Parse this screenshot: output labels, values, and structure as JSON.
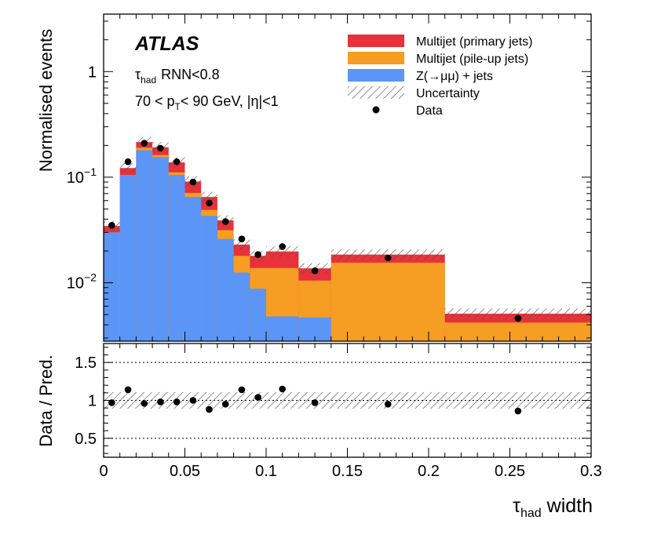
{
  "chart_data": [
    {
      "type": "bar",
      "stacked": true,
      "yscale": "log",
      "ylabel": "Normalised events",
      "xlim": [
        0,
        0.3
      ],
      "ylim": [
        0.0028,
        3.5
      ],
      "ytick_labels": [
        {
          "value": 1,
          "base": "1",
          "exp": ""
        },
        {
          "value": 0.1,
          "base": "10",
          "exp": "−1"
        },
        {
          "value": 0.01,
          "base": "10",
          "exp": "−2"
        }
      ],
      "atlas_label": "ATLAS",
      "annotations": {
        "line1_tau": "τ",
        "line1_sub": "had",
        "line1_rest": "RNN<0.8",
        "line2_pre": "70 < p",
        "line2_sub": "T",
        "line2_post": "< 90 GeV, |η|<1"
      },
      "legend": [
        {
          "label": "Multijet (primary jets)",
          "color": "#e8313a",
          "kind": "fill"
        },
        {
          "label": "Multijet (pile-up jets)",
          "color": "#f59e23",
          "kind": "fill"
        },
        {
          "label": "Z(→μμ) + jets",
          "color": "#5b95f6",
          "kind": "fill"
        },
        {
          "label": "Uncertainty",
          "color": "#555555",
          "kind": "hatch"
        },
        {
          "label": "Data",
          "color": "#000000",
          "kind": "marker"
        }
      ],
      "bins": [
        {
          "lo": 0.0,
          "hi": 0.01,
          "z": 0.03,
          "pileup": 0.0,
          "primary": 0.0045
        },
        {
          "lo": 0.01,
          "hi": 0.02,
          "z": 0.105,
          "pileup": 0.0,
          "primary": 0.017
        },
        {
          "lo": 0.02,
          "hi": 0.03,
          "z": 0.18,
          "pileup": 0.01,
          "primary": 0.025
        },
        {
          "lo": 0.03,
          "hi": 0.04,
          "z": 0.155,
          "pileup": 0.007,
          "primary": 0.03
        },
        {
          "lo": 0.04,
          "hi": 0.05,
          "z": 0.105,
          "pileup": 0.006,
          "primary": 0.027
        },
        {
          "lo": 0.05,
          "hi": 0.06,
          "z": 0.065,
          "pileup": 0.006,
          "primary": 0.02
        },
        {
          "lo": 0.06,
          "hi": 0.07,
          "z": 0.043,
          "pileup": 0.006,
          "primary": 0.016
        },
        {
          "lo": 0.07,
          "hi": 0.08,
          "z": 0.026,
          "pileup": 0.0055,
          "primary": 0.0075
        },
        {
          "lo": 0.08,
          "hi": 0.09,
          "z": 0.0125,
          "pileup": 0.0055,
          "primary": 0.005
        },
        {
          "lo": 0.09,
          "hi": 0.1,
          "z": 0.0088,
          "pileup": 0.005,
          "primary": 0.0042
        },
        {
          "lo": 0.1,
          "hi": 0.12,
          "z": 0.0048,
          "pileup": 0.009,
          "primary": 0.006
        },
        {
          "lo": 0.12,
          "hi": 0.14,
          "z": 0.0047,
          "pileup": 0.0058,
          "primary": 0.0032
        },
        {
          "lo": 0.14,
          "hi": 0.21,
          "z": 0.0,
          "pileup": 0.0155,
          "primary": 0.003
        },
        {
          "lo": 0.21,
          "hi": 0.3,
          "z": 0.0,
          "pileup": 0.0042,
          "primary": 0.0009
        }
      ],
      "data_points": [
        {
          "x": 0.005,
          "y": 0.035
        },
        {
          "x": 0.015,
          "y": 0.14
        },
        {
          "x": 0.025,
          "y": 0.21
        },
        {
          "x": 0.035,
          "y": 0.188
        },
        {
          "x": 0.045,
          "y": 0.14
        },
        {
          "x": 0.055,
          "y": 0.09
        },
        {
          "x": 0.065,
          "y": 0.057
        },
        {
          "x": 0.075,
          "y": 0.038
        },
        {
          "x": 0.085,
          "y": 0.026
        },
        {
          "x": 0.095,
          "y": 0.0185
        },
        {
          "x": 0.11,
          "y": 0.022
        },
        {
          "x": 0.13,
          "y": 0.013
        },
        {
          "x": 0.175,
          "y": 0.0172
        },
        {
          "x": 0.255,
          "y": 0.0046
        }
      ]
    },
    {
      "type": "scatter",
      "ylabel": "Data / Pred.",
      "xlabel_tau": "τ",
      "xlabel_sub": "had",
      "xlabel_rest": " width",
      "xlim": [
        0,
        0.3
      ],
      "ylim": [
        0.25,
        1.75
      ],
      "yticks": [
        0.5,
        1,
        1.5
      ],
      "ytick_labels": [
        "0.5",
        "1",
        "1.5"
      ],
      "xticks": [
        0,
        0.05,
        0.1,
        0.15,
        0.2,
        0.25,
        0.3
      ],
      "xtick_labels": [
        "0",
        "0.05",
        "0.1",
        "0.15",
        "0.2",
        "0.25",
        "0.3"
      ],
      "uncertainty_band": [
        0.89,
        1.11
      ],
      "points": [
        {
          "x": 0.005,
          "y": 0.97
        },
        {
          "x": 0.015,
          "y": 1.14
        },
        {
          "x": 0.025,
          "y": 0.96
        },
        {
          "x": 0.035,
          "y": 0.98
        },
        {
          "x": 0.045,
          "y": 0.98
        },
        {
          "x": 0.055,
          "y": 1.0
        },
        {
          "x": 0.065,
          "y": 0.88
        },
        {
          "x": 0.075,
          "y": 0.95
        },
        {
          "x": 0.085,
          "y": 1.14
        },
        {
          "x": 0.095,
          "y": 1.04
        },
        {
          "x": 0.11,
          "y": 1.15
        },
        {
          "x": 0.13,
          "y": 0.97
        },
        {
          "x": 0.175,
          "y": 0.95
        },
        {
          "x": 0.255,
          "y": 0.86
        }
      ]
    }
  ]
}
